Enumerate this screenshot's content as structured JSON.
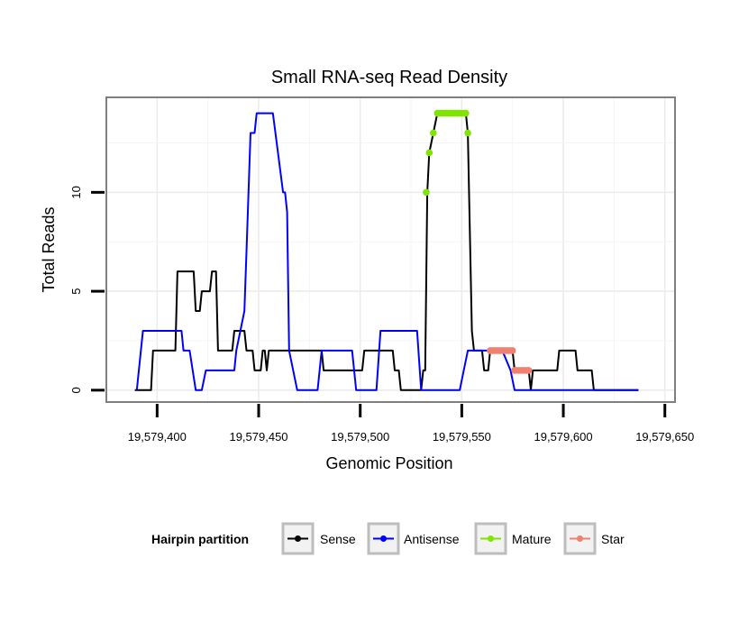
{
  "chart_data": {
    "type": "line",
    "title": "Small RNA-seq Read Density",
    "xlabel": "Genomic Position",
    "ylabel": "Total Reads",
    "xlim": [
      19579375,
      19579655
    ],
    "ylim": [
      -0.6,
      14.8
    ],
    "xticks": [
      19579400,
      19579450,
      19579500,
      19579550,
      19579600,
      19579650
    ],
    "xtick_labels": [
      "19,579,400",
      "19,579,450",
      "19,579,500",
      "19,579,550",
      "19,579,600",
      "19,579,650"
    ],
    "yticks": [
      0,
      5,
      10
    ],
    "ytick_labels": [
      "0",
      "5",
      "10"
    ],
    "grid": true,
    "legend_title": "Hairpin partition",
    "legend_position": "bottom",
    "series": [
      {
        "name": "Sense",
        "color": "#000000",
        "points": [
          [
            19579389,
            0
          ],
          [
            19579397,
            0
          ],
          [
            19579398,
            2
          ],
          [
            19579409,
            2
          ],
          [
            19579410,
            6
          ],
          [
            19579418,
            6
          ],
          [
            19579419,
            4
          ],
          [
            19579421,
            4
          ],
          [
            19579422,
            5
          ],
          [
            19579426,
            5
          ],
          [
            19579427,
            6
          ],
          [
            19579429,
            6
          ],
          [
            19579430,
            2
          ],
          [
            19579437,
            2
          ],
          [
            19579438,
            3
          ],
          [
            19579443,
            3
          ],
          [
            19579444,
            2
          ],
          [
            19579447,
            2
          ],
          [
            19579448,
            1
          ],
          [
            19579451,
            1
          ],
          [
            19579452,
            2
          ],
          [
            19579453,
            2
          ],
          [
            19579454,
            1
          ],
          [
            19579455,
            2
          ],
          [
            19579481,
            2
          ],
          [
            19579482,
            1
          ],
          [
            19579501,
            1
          ],
          [
            19579502,
            2
          ],
          [
            19579516,
            2
          ],
          [
            19579517,
            1
          ],
          [
            19579519,
            1
          ],
          [
            19579520,
            0
          ],
          [
            19579530,
            0
          ],
          [
            19579531,
            1
          ],
          [
            19579532,
            1
          ],
          [
            19579533,
            10
          ],
          [
            19579534,
            12
          ],
          [
            19579536,
            13
          ],
          [
            19579538,
            14
          ],
          [
            19579552,
            14
          ],
          [
            19579553,
            13
          ],
          [
            19579555,
            3
          ],
          [
            19579556,
            2
          ],
          [
            19579560,
            2
          ],
          [
            19579561,
            1
          ],
          [
            19579563,
            1
          ],
          [
            19579564,
            2
          ],
          [
            19579575,
            2
          ],
          [
            19579576,
            1
          ],
          [
            19579583,
            1
          ],
          [
            19579584,
            0
          ],
          [
            19579585,
            1
          ],
          [
            19579597,
            1
          ],
          [
            19579598,
            2
          ],
          [
            19579606,
            2
          ],
          [
            19579607,
            1
          ],
          [
            19579614,
            1
          ],
          [
            19579615,
            0
          ],
          [
            19579637,
            0
          ]
        ]
      },
      {
        "name": "Antisense",
        "color": "#0000ff",
        "points": [
          [
            19579390,
            0
          ],
          [
            19579393,
            3
          ],
          [
            19579412,
            3
          ],
          [
            19579413,
            2
          ],
          [
            19579416,
            2
          ],
          [
            19579419,
            0
          ],
          [
            19579422,
            0
          ],
          [
            19579424,
            1
          ],
          [
            19579438,
            1
          ],
          [
            19579439,
            2
          ],
          [
            19579441,
            3
          ],
          [
            19579443,
            4
          ],
          [
            19579444,
            7
          ],
          [
            19579446,
            13
          ],
          [
            19579448,
            13
          ],
          [
            19579449,
            14
          ],
          [
            19579457,
            14
          ],
          [
            19579462,
            10
          ],
          [
            19579463,
            10
          ],
          [
            19579464,
            9
          ],
          [
            19579465,
            2
          ],
          [
            19579469,
            0
          ],
          [
            19579479,
            0
          ],
          [
            19579481,
            2
          ],
          [
            19579496,
            2
          ],
          [
            19579498,
            0
          ],
          [
            19579508,
            0
          ],
          [
            19579510,
            3
          ],
          [
            19579528,
            3
          ],
          [
            19579530,
            0
          ],
          [
            19579549,
            0
          ],
          [
            19579553,
            2
          ],
          [
            19579570,
            2
          ],
          [
            19579574,
            1
          ],
          [
            19579576,
            0
          ],
          [
            19579637,
            0
          ]
        ]
      },
      {
        "name": "Mature",
        "color": "#7fe500",
        "points": [
          [
            19579532.5,
            10
          ],
          [
            19579534,
            12
          ],
          [
            19579536,
            13
          ],
          [
            19579538,
            14
          ],
          [
            19579539,
            14
          ],
          [
            19579540,
            14
          ],
          [
            19579541,
            14
          ],
          [
            19579542,
            14
          ],
          [
            19579543,
            14
          ],
          [
            19579544,
            14
          ],
          [
            19579545,
            14
          ],
          [
            19579546,
            14
          ],
          [
            19579547,
            14
          ],
          [
            19579548,
            14
          ],
          [
            19579549,
            14
          ],
          [
            19579550,
            14
          ],
          [
            19579551,
            14
          ],
          [
            19579552,
            14
          ],
          [
            19579553,
            13
          ]
        ]
      },
      {
        "name": "Star",
        "color": "#f08070",
        "points": [
          [
            19579564,
            2
          ],
          [
            19579565,
            2
          ],
          [
            19579566,
            2
          ],
          [
            19579567,
            2
          ],
          [
            19579568,
            2
          ],
          [
            19579569,
            2
          ],
          [
            19579570,
            2
          ],
          [
            19579571,
            2
          ],
          [
            19579572,
            2
          ],
          [
            19579573,
            2
          ],
          [
            19579574,
            2
          ],
          [
            19579575,
            2
          ],
          [
            19579576,
            1
          ],
          [
            19579577,
            1
          ],
          [
            19579578,
            1
          ],
          [
            19579579,
            1
          ],
          [
            19579580,
            1
          ],
          [
            19579581,
            1
          ],
          [
            19579582,
            1
          ],
          [
            19579583,
            1
          ]
        ]
      }
    ]
  }
}
